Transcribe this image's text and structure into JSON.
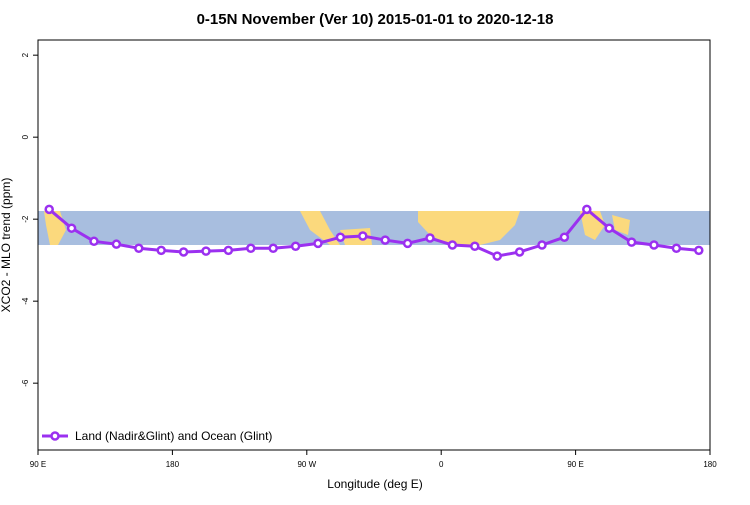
{
  "chart_data": {
    "type": "line",
    "title": "0-15N November (Ver 10)   2015-01-01 to 2020-12-18",
    "x_label": "Longitude (deg E)",
    "y_label": "XCO2 - MLO trend (ppm)",
    "x": [
      97.5,
      112.5,
      127.5,
      142.5,
      157.5,
      172.5,
      187.5,
      202.5,
      217.5,
      232.5,
      247.5,
      262.5,
      277.5,
      292.5,
      307.5,
      322.5,
      337.5,
      352.5,
      367.5,
      382.5,
      397.5,
      412.5,
      427.5,
      442.5,
      457.5,
      472.5,
      487.5,
      502.5,
      517.5,
      532.5
    ],
    "series": [
      {
        "name": "Land (Nadir&Glint) and Ocean (Glint)",
        "color": "#9b30f0",
        "values": [
          -1.76,
          -2.22,
          -2.54,
          -2.61,
          -2.71,
          -2.76,
          -2.8,
          -2.78,
          -2.76,
          -2.71,
          -2.71,
          -2.66,
          -2.59,
          -2.44,
          -2.41,
          -2.51,
          -2.59,
          -2.46,
          -2.63,
          -2.66,
          -2.9,
          -2.8,
          -2.63,
          -2.44,
          -1.76,
          -2.22,
          -2.56,
          -2.63,
          -2.71,
          -2.76
        ]
      }
    ],
    "xlim": [
      90,
      540
    ],
    "xticks": [
      {
        "value": 90,
        "label": "90 E"
      },
      {
        "value": 180,
        "label": "180"
      },
      {
        "value": 270,
        "label": "90 W"
      },
      {
        "value": 360,
        "label": "0"
      },
      {
        "value": 450,
        "label": "90 E"
      },
      {
        "value": 540,
        "label": "180"
      }
    ],
    "ylim": [
      -7.63,
      2.37
    ],
    "yticks": [
      2,
      0,
      -2,
      -4,
      -6
    ],
    "legend": "bottom-left"
  }
}
